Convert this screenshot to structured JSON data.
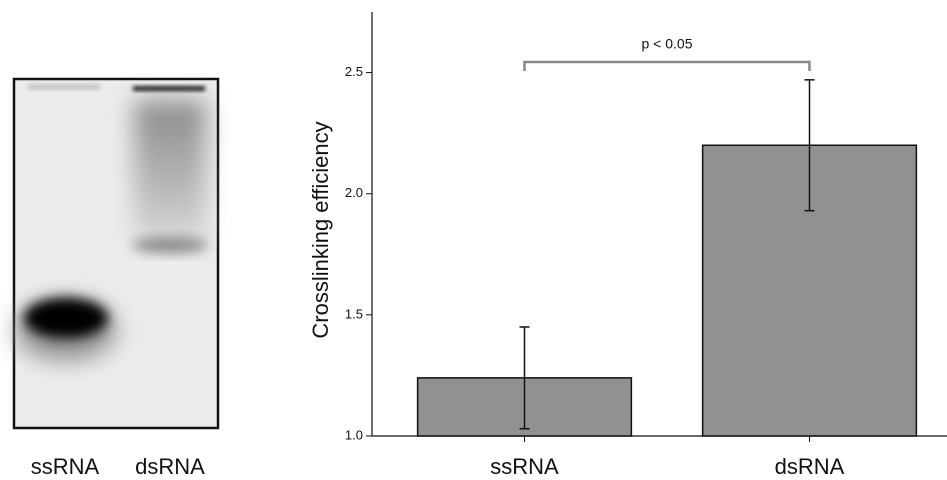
{
  "chart_data": {
    "type": "bar",
    "y_label": "Crosslinking efficiency",
    "categories": [
      "ssRNA",
      "dsRNA"
    ],
    "values": [
      1.24,
      2.2
    ],
    "errors": [
      0.21,
      0.27
    ],
    "color": "#919191",
    "ylim": [
      1.0,
      2.75
    ],
    "yticks": [
      {
        "value": 1.0,
        "label": "1.0"
      },
      1.5,
      {
        "value": 2.0,
        "label": "2.0"
      },
      2.5
    ],
    "annotation": "p < 0.05"
  },
  "gel": {
    "lane_labels": [
      "ssRNA",
      "dsRNA"
    ]
  }
}
